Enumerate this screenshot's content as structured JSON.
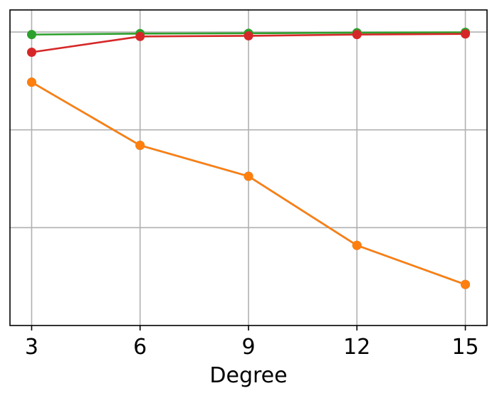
{
  "chart_data": {
    "type": "line",
    "xlabel": "Degree",
    "ylabel": "",
    "x": [
      3,
      6,
      9,
      12,
      15
    ],
    "x_ticks": [
      "3",
      "6",
      "9",
      "12",
      "15"
    ],
    "xlim": [
      2.4,
      15.6
    ],
    "ylim": [
      0.0,
      1.0
    ],
    "y_gridlines": [
      0.31,
      0.62,
      0.93
    ],
    "y_tick_labels_shown": false,
    "grid": true,
    "series": [
      {
        "color": "#2ca02c",
        "values": [
          0.922,
          0.925,
          0.926,
          0.928,
          0.929
        ]
      },
      {
        "color": "#d62728",
        "values": [
          0.866,
          0.916,
          0.918,
          0.922,
          0.924
        ]
      },
      {
        "color": "#1f77b4",
        "values": [
          0.771,
          0.571,
          0.473,
          0.254,
          0.13
        ]
      },
      {
        "color": "#ff7f0e",
        "values": [
          0.771,
          0.571,
          0.473,
          0.254,
          0.13
        ]
      }
    ]
  }
}
